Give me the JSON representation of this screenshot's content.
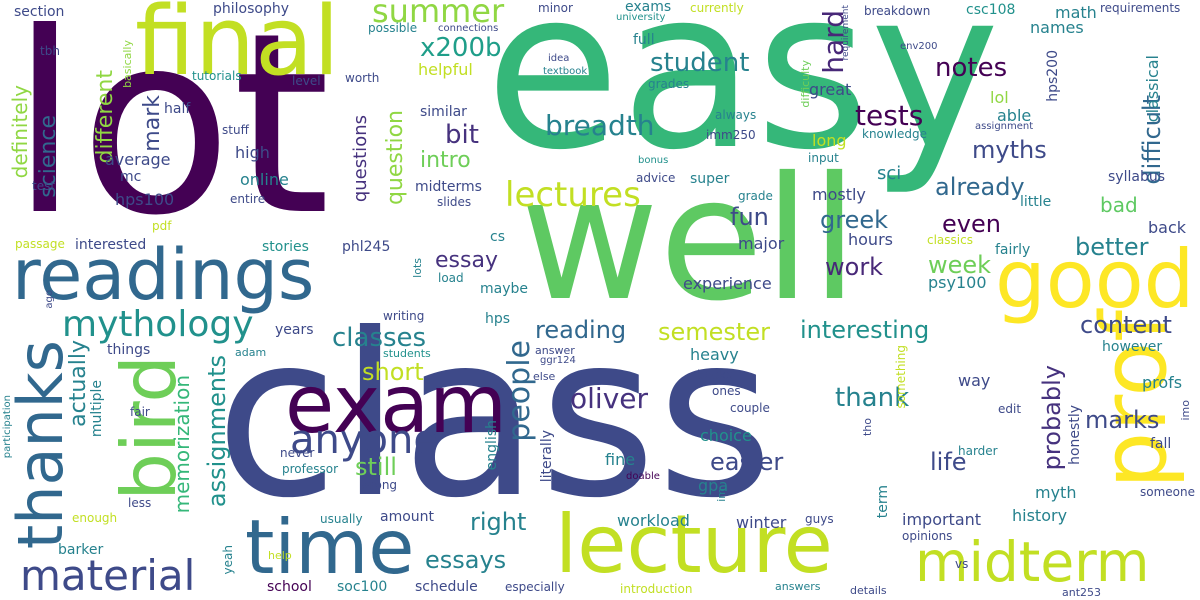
{
  "palette": {
    "c0": "#440154",
    "c1": "#3b528b",
    "c2": "#21918c",
    "c3": "#5ec962",
    "c4": "#fde725",
    "c5": "#31688e",
    "c6": "#35b779",
    "c7": "#482878",
    "c8": "#26828e",
    "c9": "#90d743",
    "c10": "#1f9e89",
    "c11": "#6ece58",
    "c12": "#c2df23",
    "c13": "#3e4a89",
    "c14": "#46327e"
  },
  "words": [
    "easy",
    "lot",
    "class",
    "well",
    "final",
    "readings",
    "good",
    "prof",
    "exam",
    "lecture",
    "time",
    "bird",
    "thanks",
    "midterm",
    "material",
    "anyone",
    "mythology",
    "lectures",
    "summer",
    "x200b",
    "student",
    "notes",
    "breadth",
    "tests",
    "hard",
    "classes",
    "reading",
    "semester",
    "interesting",
    "content",
    "people",
    "oliver",
    "easier",
    "fun",
    "greek",
    "work",
    "week",
    "already",
    "even",
    "myths",
    "difficult",
    "thank",
    "short",
    "still",
    "assignments",
    "memorization",
    "essay",
    "essays",
    "right",
    "life",
    "marks",
    "probably",
    "better",
    "bad",
    "back",
    "hours",
    "major",
    "experience",
    "intro",
    "question",
    "questions",
    "bit",
    "science",
    "definitely",
    "different",
    "mark",
    "actually",
    "average",
    "high",
    "online",
    "hps100",
    "interested",
    "years",
    "things",
    "mc",
    "entire",
    "stuff",
    "half",
    "section",
    "philosophy",
    "tbh",
    "basically",
    "tutorials",
    "level",
    "worth",
    "similar",
    "midterms",
    "slides",
    "advice",
    "super",
    "mostly",
    "sci",
    "psy100",
    "fairly",
    "lol",
    "able",
    "great",
    "long",
    "knowledge",
    "assignment",
    "input",
    "bonus",
    "grades",
    "idea",
    "textbook",
    "always",
    "imm250",
    "grade",
    "little",
    "syllabus",
    "classical",
    "requirements",
    "math",
    "names",
    "csc108",
    "hps200",
    "env200",
    "requirement",
    "difficulty",
    "breakdown",
    "currently",
    "university",
    "exams",
    "minor",
    "possible",
    "connections",
    "full",
    "helpful",
    "cs",
    "maybe",
    "hps",
    "lots",
    "load",
    "writing",
    "answer",
    "ggr124",
    "else",
    "books",
    "ones",
    "couple",
    "heavy",
    "choice",
    "fine",
    "gpa",
    "english",
    "literally",
    "professor",
    "never",
    "wrong",
    "usually",
    "amount",
    "students",
    "adam",
    "passage",
    "pdf",
    "test",
    "stories",
    "phl245",
    "classics",
    "history",
    "myth",
    "honestly",
    "however",
    "profs",
    "way",
    "edit",
    "fall",
    "imo",
    "someone",
    "harder",
    "something",
    "term",
    "important",
    "winter",
    "guys",
    "workload",
    "school",
    "soc100",
    "schedule",
    "especially",
    "introduction",
    "details",
    "vs",
    "opinions",
    "answers",
    "ant253",
    "help",
    "yeah",
    "barker",
    "enough",
    "less",
    "fair",
    "multiple",
    "participation",
    "ago",
    "doable",
    "tho",
    "im"
  ]
}
